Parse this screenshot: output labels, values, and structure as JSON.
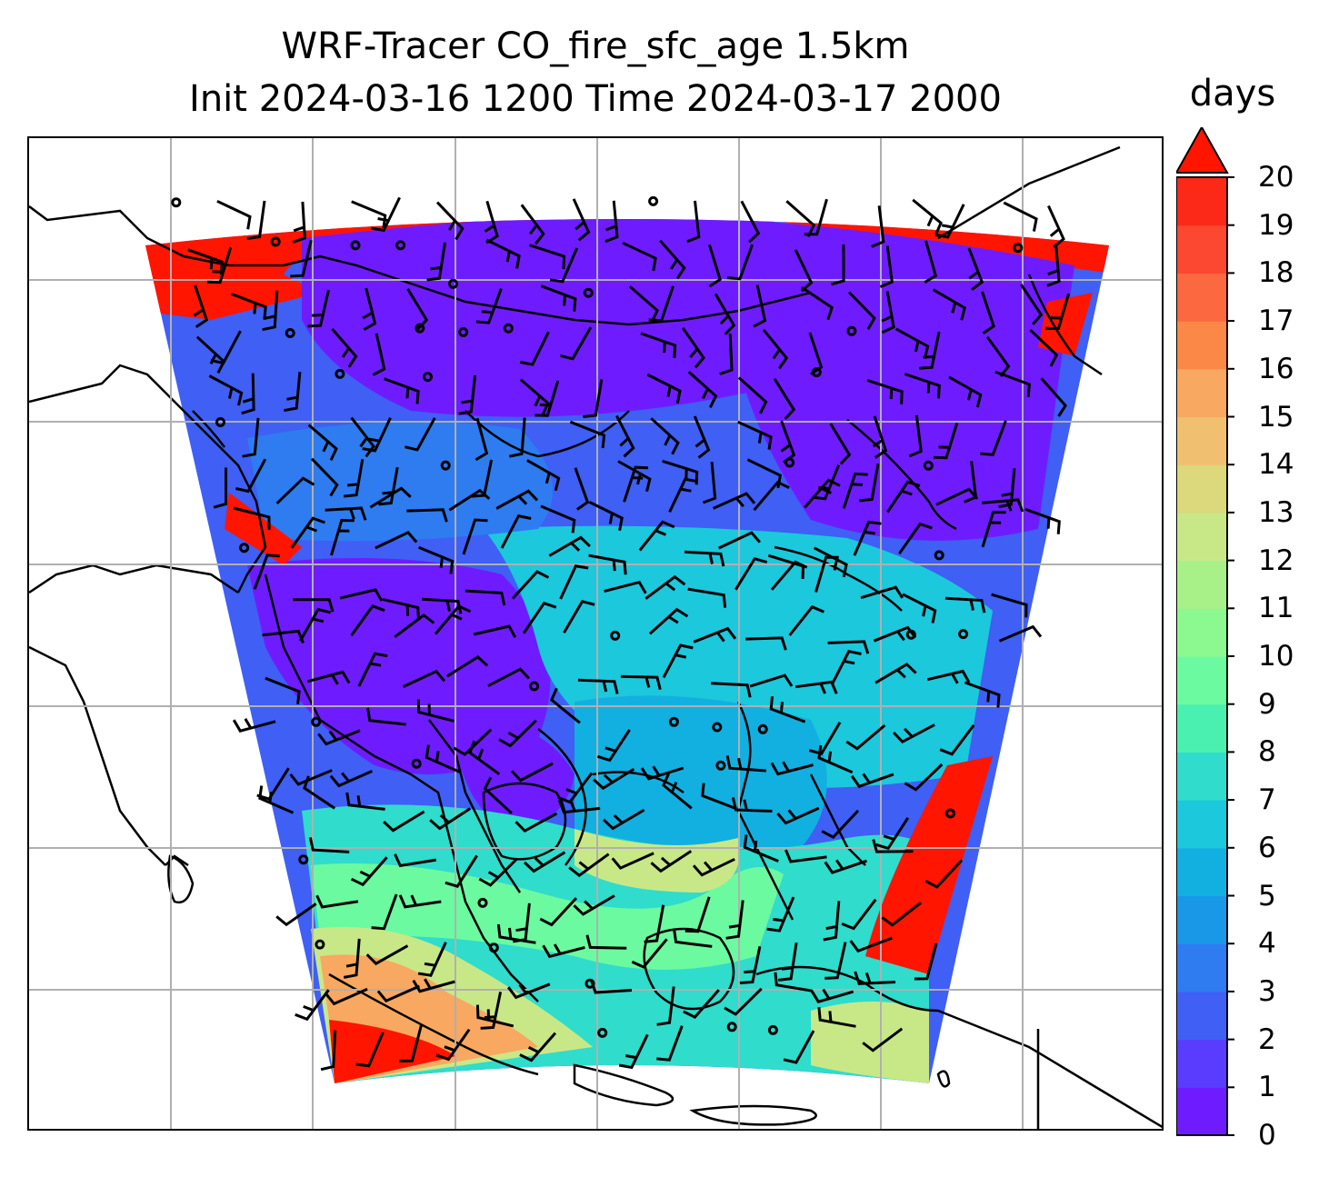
{
  "title": {
    "line1": "WRF-Tracer CO_fire_sfc_age 1.5km",
    "line2": "Init 2024-03-16 1200 Time 2024-03-17 2000"
  },
  "colorbar": {
    "unit": "days",
    "min": 0,
    "max": 20,
    "extend": "max",
    "tick_labels": [
      "0",
      "1",
      "2",
      "3",
      "4",
      "5",
      "6",
      "7",
      "8",
      "9",
      "10",
      "11",
      "12",
      "13",
      "14",
      "15",
      "16",
      "17",
      "18",
      "19",
      "20"
    ],
    "colors": [
      "#6e1cff",
      "#5a3cff",
      "#3f5ff5",
      "#2e7cf0",
      "#1a98e8",
      "#12b0e0",
      "#1cc8dc",
      "#30dccb",
      "#4af0b0",
      "#6cfaa0",
      "#8cf890",
      "#a8f088",
      "#c8e888",
      "#dcd87c",
      "#f0c070",
      "#f8a860",
      "#fc8848",
      "#fc6840",
      "#fc4830",
      "#fc2818"
    ],
    "extend_color": "#ff1500"
  },
  "map": {
    "gridlines": true,
    "overlays": [
      "wind-barbs",
      "coastlines",
      "gridlines"
    ]
  }
}
